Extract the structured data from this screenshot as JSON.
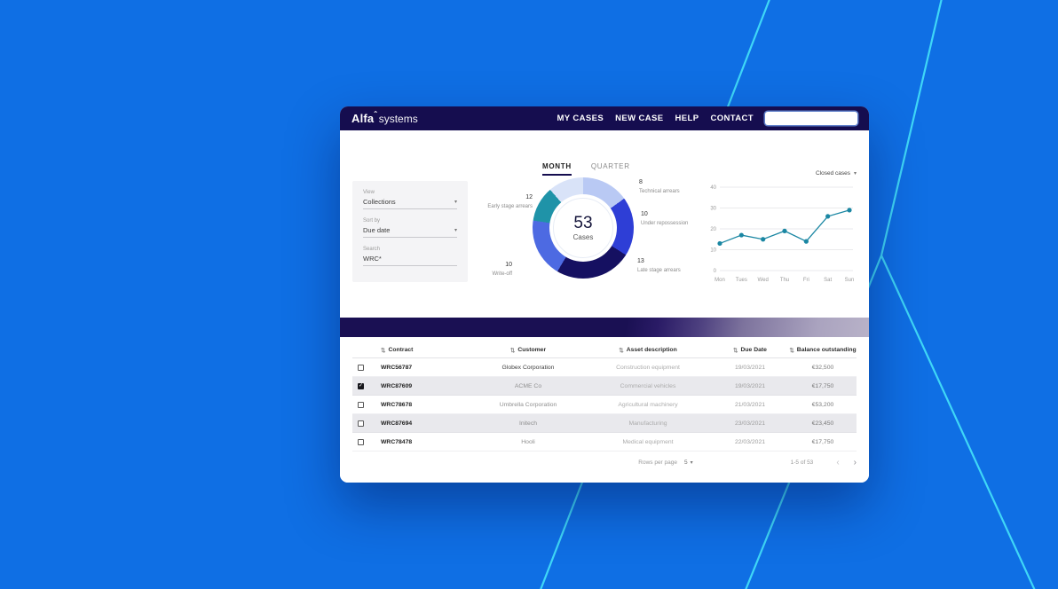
{
  "theme": {
    "background_blue": "#0f6fe4",
    "accent_cyan": "#3fd7f7",
    "navy": "#150d4f",
    "teal": "#1f93a8"
  },
  "navbar": {
    "brand_primary": "Alfa",
    "brand_secondary": "systems",
    "items": [
      "MY CASES",
      "NEW CASE",
      "HELP",
      "CONTACT"
    ],
    "search_value": "",
    "search_placeholder": ""
  },
  "tabs": [
    {
      "label": "MONTH",
      "active": true
    },
    {
      "label": "QUARTER",
      "active": false
    }
  ],
  "filters": [
    {
      "label": "View",
      "value": "Collections",
      "type": "select"
    },
    {
      "label": "Sort by",
      "value": "Due date",
      "type": "select"
    },
    {
      "label": "Search",
      "value": "WRC*",
      "type": "text"
    }
  ],
  "chart_data": [
    {
      "type": "pie",
      "center_value": "53",
      "center_label": "Cases",
      "total": 53,
      "segments": [
        {
          "label": "Technical arrears",
          "value": 8,
          "colors": [
            "#b9c9f4"
          ]
        },
        {
          "label": "Under repossession",
          "value": 10,
          "colors": [
            "#2e3ed6"
          ]
        },
        {
          "label": "Late stage arrears",
          "value": 13,
          "colors": [
            "#151061"
          ]
        },
        {
          "label": "Write-off",
          "value": 10,
          "colors": [
            "#4d6ae2"
          ]
        },
        {
          "label": "Early stage arrears",
          "value": 12,
          "colors": [
            "#1f93a8",
            "#d9e3f8"
          ]
        }
      ]
    },
    {
      "type": "line",
      "title": "Closed cases",
      "x": [
        "Mon",
        "Tues",
        "Wed",
        "Thu",
        "Fri",
        "Sat",
        "Sun"
      ],
      "values": [
        13,
        17,
        15,
        19,
        14,
        26,
        29
      ],
      "ylim": [
        0,
        40
      ],
      "yticks": [
        0,
        10,
        20,
        30,
        40
      ],
      "grid": true,
      "line_color": "#1b87a3"
    }
  ],
  "table": {
    "columns": [
      "Contract",
      "Customer",
      "Asset description",
      "Due Date",
      "Balance outstanding"
    ],
    "rows": [
      {
        "contract": "WRC56787",
        "customer": "Globex Corporation",
        "asset": "Construction equipment",
        "due": "19/03/2021",
        "balance": "€32,500",
        "checked": false,
        "selected": false
      },
      {
        "contract": "WRC87609",
        "customer": "ACME Co",
        "asset": "Commercial vehicles",
        "due": "19/03/2021",
        "balance": "€17,750",
        "checked": true,
        "selected": true
      },
      {
        "contract": "WRC78678",
        "customer": "Umbrella Corporation",
        "asset": "Agricultural machinery",
        "due": "21/03/2021",
        "balance": "€53,200",
        "checked": false,
        "selected": false
      },
      {
        "contract": "WRC87694",
        "customer": "Initech",
        "asset": "Manufacturing",
        "due": "23/03/2021",
        "balance": "€23,450",
        "checked": false,
        "selected": true
      },
      {
        "contract": "WRC78478",
        "customer": "Hooli",
        "asset": "Medical equipment",
        "due": "22/03/2021",
        "balance": "€17,750",
        "checked": false,
        "selected": false
      }
    ],
    "pagination": {
      "rows_per_page_label": "Rows per page",
      "rows_per_page": "5",
      "range": "1-5 of 53",
      "prev_icon": "‹",
      "next_icon": "›"
    }
  }
}
